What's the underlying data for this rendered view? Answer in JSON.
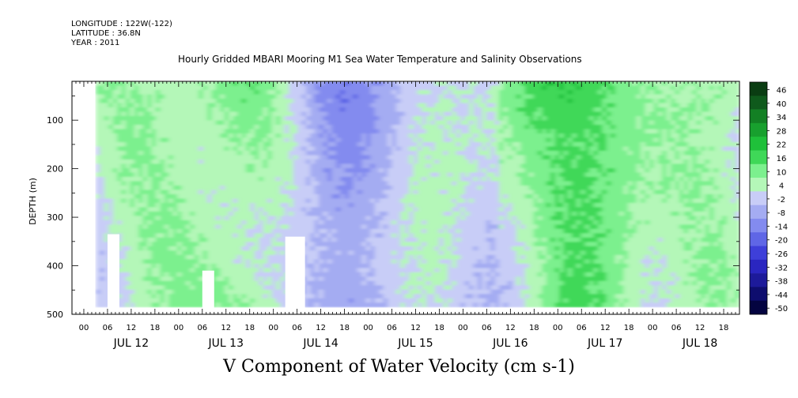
{
  "header": {
    "longitude": "LONGITUDE : 122W(-122)",
    "latitude": "LATITUDE : 36.8N",
    "year": "YEAR : 2011",
    "title": "Hourly Gridded MBARI Mooring M1 Sea Water Temperature and Salinity Observations"
  },
  "chart_data": {
    "type": "heatmap",
    "title": "Hourly Gridded MBARI Mooring M1 Sea Water Temperature and Salinity Observations",
    "bottom_label": "V Component of Water Velocity (cm s-1)",
    "ylabel": "DEPTH (m)",
    "ylim": [
      500,
      20
    ],
    "y_inverted": true,
    "y_ticks": [
      100,
      200,
      300,
      400,
      500
    ],
    "x_start": "2011-07-11T21:00",
    "x_end": "2011-07-18T22:00",
    "x_hour_ticks": [
      "00",
      "06",
      "12",
      "18",
      "00",
      "06",
      "12",
      "18",
      "00",
      "06",
      "12",
      "18",
      "00",
      "06",
      "12",
      "18",
      "00",
      "06",
      "12",
      "18",
      "00",
      "06",
      "12",
      "18",
      "00",
      "06",
      "12",
      "18"
    ],
    "x_day_labels": [
      "JUL 12",
      "JUL 13",
      "JUL 14",
      "JUL 15",
      "JUL 16",
      "JUL 17",
      "JUL 18"
    ],
    "colorbar": {
      "labels": [
        "46",
        "40",
        "34",
        "28",
        "22",
        "16",
        "10",
        "4",
        "-2",
        "-8",
        "-14",
        "-20",
        "-26",
        "-32",
        "-38",
        "-44",
        "-50"
      ],
      "range": [
        -50,
        46
      ],
      "colors": [
        "#0a3d12",
        "#0f5a1c",
        "#138024",
        "#18a02e",
        "#1fc03a",
        "#3fd858",
        "#7cf08e",
        "#b4f7b8",
        "#c8cdf7",
        "#a4acf2",
        "#838bef",
        "#5f66e6",
        "#3e3fd9",
        "#2a26c0",
        "#1d1a9a",
        "#0e0d6e",
        "#040440"
      ]
    },
    "data_start": "2011-07-12T03:00",
    "depth_range_observed": [
      20,
      485
    ],
    "gaps": [
      {
        "x_start": "2011-07-12T06:00",
        "x_end": "2011-07-12T09:00",
        "depth_top": 335
      },
      {
        "x_start": "2011-07-13T06:00",
        "x_end": "2011-07-13T09:00",
        "depth_top": 410
      },
      {
        "x_start": "2011-07-14T03:00",
        "x_end": "2011-07-14T08:00",
        "depth_top": 340
      }
    ]
  }
}
